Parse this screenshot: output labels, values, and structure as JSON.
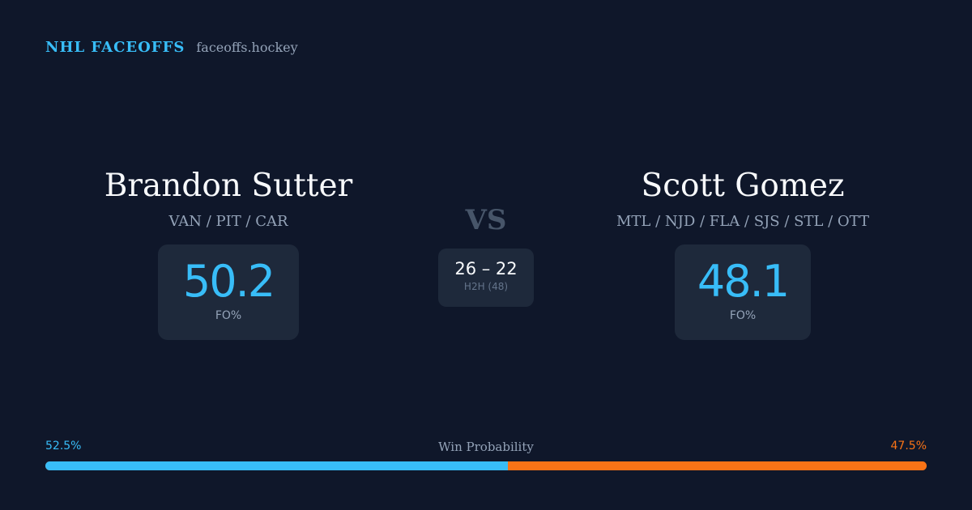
{
  "header": {
    "brand": "NHL FACEOFFS",
    "domain": "faceoffs.hockey"
  },
  "player_left": {
    "name": "Brandon Sutter",
    "teams": "VAN / PIT / CAR",
    "stat_value": "50.2",
    "stat_label": "FO%"
  },
  "vs_label": "VS",
  "head_to_head": {
    "score": "26 – 22",
    "label": "H2H (48)"
  },
  "player_right": {
    "name": "Scott Gomez",
    "teams": "MTL / NJD / FLA / SJS / STL / OTT",
    "stat_value": "48.1",
    "stat_label": "FO%"
  },
  "win_probability": {
    "title": "Win Probability",
    "left_label": "52.5%",
    "right_label": "47.5%",
    "left_fraction": 0.525,
    "left_color": "#38bdf8",
    "right_color": "#f97316"
  }
}
